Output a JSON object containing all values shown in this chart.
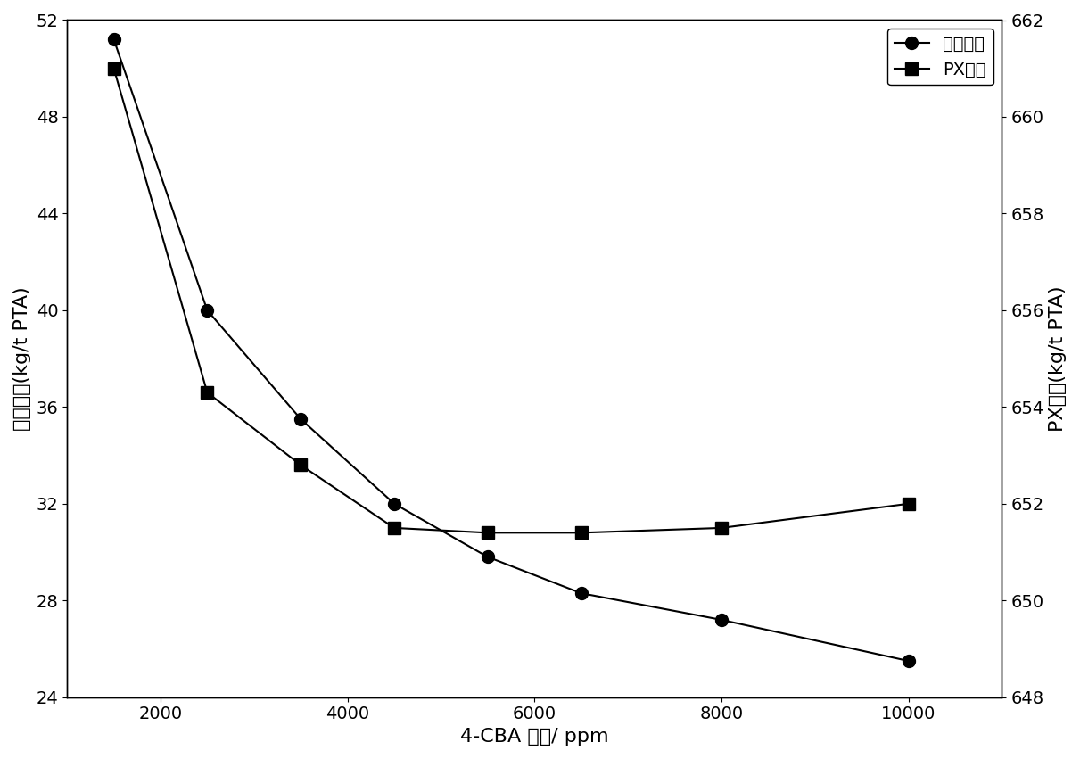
{
  "x": [
    1500,
    2500,
    3500,
    4500,
    5500,
    6500,
    8000,
    10000
  ],
  "acetic_acid": [
    51.2,
    40.0,
    35.5,
    32.0,
    29.8,
    28.3,
    27.2,
    25.5
  ],
  "px": [
    661.0,
    654.3,
    652.8,
    651.5,
    651.4,
    651.4,
    651.5,
    652.0
  ],
  "xlabel": "4-CBA 浓度/ ppm",
  "ylabel_left": "醛酸消耗(kg/t PTA)",
  "ylabel_right": "PX消耗(kg/t PTA)",
  "legend_acetic": "醛酸消耗",
  "legend_px": "PX消耗",
  "xlim": [
    1000,
    11000
  ],
  "ylim_left": [
    24,
    52
  ],
  "ylim_right": [
    648,
    662
  ],
  "xticks": [
    2000,
    4000,
    6000,
    8000,
    10000
  ],
  "yticks_left": [
    24,
    28,
    32,
    36,
    40,
    44,
    48,
    52
  ],
  "yticks_right": [
    648,
    650,
    652,
    654,
    656,
    658,
    660,
    662
  ],
  "line_color": "#000000",
  "marker_circle": "o",
  "marker_square": "s",
  "markersize": 10,
  "linewidth": 1.5,
  "figsize": [
    12.11,
    8.51
  ],
  "dpi": 100,
  "font_size_label": 16,
  "font_size_tick": 14,
  "font_size_legend": 14
}
